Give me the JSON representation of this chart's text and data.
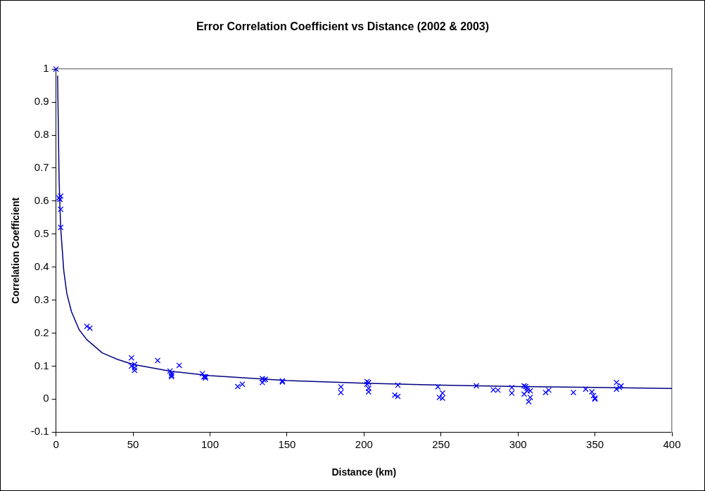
{
  "chart_data": {
    "type": "scatter",
    "title": "Error Correlation Coefficient vs Distance (2002 & 2003)",
    "xlabel": "Distance (km)",
    "ylabel": "Correlation Coefficient",
    "xlim": [
      0,
      400
    ],
    "xticks": [
      0,
      50,
      100,
      150,
      200,
      250,
      300,
      350,
      400
    ],
    "ylim": [
      -0.1,
      1
    ],
    "yticks": [
      -0.1,
      0,
      0.1,
      0.2,
      0.3,
      0.4,
      0.5,
      0.6,
      0.7,
      0.8,
      0.9,
      1
    ],
    "grid": false,
    "legend": false,
    "series": [
      {
        "type": "scatter",
        "marker": "cross",
        "color": "#0000ff",
        "x": [
          0,
          2,
          2.5,
          3,
          3,
          3,
          20,
          22,
          49,
          49,
          51,
          51,
          51,
          66,
          74,
          75,
          75,
          75,
          80,
          95,
          96,
          97,
          97,
          118,
          121,
          134,
          134,
          135,
          136,
          147,
          147,
          185,
          185,
          202,
          202,
          203,
          203,
          203,
          220,
          222,
          222,
          248,
          249,
          251,
          251,
          273,
          284,
          287,
          296,
          296,
          304,
          304,
          305,
          306,
          306,
          307,
          308,
          308,
          318,
          320,
          336,
          344,
          348,
          349,
          350,
          350,
          364,
          364,
          366,
          367
        ],
        "values": [
          1,
          0.61,
          0.605,
          0.615,
          0.575,
          0.52,
          0.22,
          0.215,
          0.125,
          0.1,
          0.105,
          0.095,
          0.087,
          0.117,
          0.085,
          0.078,
          0.072,
          0.068,
          0.102,
          0.077,
          0.067,
          0.068,
          0.064,
          0.038,
          0.045,
          0.062,
          0.05,
          0.058,
          0.06,
          0.055,
          0.052,
          0.037,
          0.02,
          0.053,
          0.045,
          0.032,
          0.022,
          0.05,
          0.012,
          0.008,
          0.042,
          0.037,
          0.005,
          0.018,
          0.003,
          0.04,
          0.028,
          0.027,
          0.035,
          0.018,
          0.04,
          0.015,
          0.038,
          0.032,
          0.025,
          -0.008,
          0.025,
          0.005,
          0.02,
          0.027,
          0.02,
          0.03,
          0.022,
          0.01,
          0.003,
          0,
          0.05,
          0.03,
          0.035,
          0.04
        ]
      },
      {
        "type": "line",
        "marker": "none",
        "line_style": "solid",
        "color": "#000080",
        "x": [
          1,
          2,
          3,
          5,
          7,
          10,
          15,
          20,
          30,
          40,
          50,
          75,
          100,
          150,
          200,
          250,
          300,
          350,
          400
        ],
        "values": [
          0.98,
          0.66,
          0.52,
          0.39,
          0.32,
          0.265,
          0.21,
          0.18,
          0.14,
          0.12,
          0.105,
          0.084,
          0.071,
          0.056,
          0.048,
          0.042,
          0.038,
          0.035,
          0.032
        ]
      }
    ]
  }
}
